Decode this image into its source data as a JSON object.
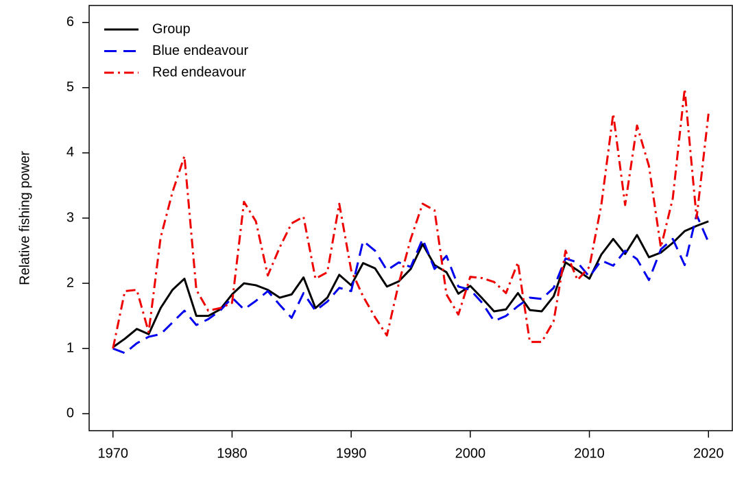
{
  "chart_data": {
    "type": "line",
    "y_label": "Relative fishing power",
    "x": [
      1970,
      1971,
      1972,
      1973,
      1974,
      1975,
      1976,
      1977,
      1978,
      1979,
      1980,
      1981,
      1982,
      1983,
      1984,
      1985,
      1986,
      1987,
      1988,
      1989,
      1990,
      1991,
      1992,
      1993,
      1994,
      1995,
      1996,
      1997,
      1998,
      1999,
      2000,
      2001,
      2002,
      2003,
      2004,
      2005,
      2006,
      2007,
      2008,
      2009,
      2010,
      2011,
      2012,
      2013,
      2014,
      2015,
      2016,
      2017,
      2018,
      2019,
      2020
    ],
    "series": [
      {
        "name": "Group",
        "color": "#000000",
        "dash": "solid",
        "values": [
          1.02,
          1.15,
          1.3,
          1.22,
          1.62,
          1.9,
          2.07,
          1.5,
          1.5,
          1.6,
          1.83,
          2.0,
          1.97,
          1.9,
          1.78,
          1.83,
          2.09,
          1.62,
          1.78,
          2.13,
          1.97,
          2.31,
          2.23,
          1.95,
          2.03,
          2.22,
          2.6,
          2.28,
          2.17,
          1.84,
          1.96,
          1.77,
          1.57,
          1.6,
          1.85,
          1.59,
          1.57,
          1.8,
          2.32,
          2.2,
          2.07,
          2.44,
          2.68,
          2.45,
          2.74,
          2.4,
          2.47,
          2.62,
          2.8,
          2.88,
          2.95
        ]
      },
      {
        "name": "Blue endeavour",
        "color": "#0000ee",
        "dash": "dashed",
        "values": [
          1.0,
          0.93,
          1.08,
          1.18,
          1.22,
          1.4,
          1.58,
          1.36,
          1.45,
          1.58,
          1.78,
          1.6,
          1.73,
          1.88,
          1.67,
          1.47,
          1.85,
          1.58,
          1.72,
          1.93,
          1.88,
          2.65,
          2.5,
          2.2,
          2.32,
          2.25,
          2.68,
          2.22,
          2.42,
          1.95,
          1.9,
          1.7,
          1.42,
          1.5,
          1.65,
          1.78,
          1.76,
          1.93,
          2.38,
          2.32,
          2.1,
          2.35,
          2.27,
          2.5,
          2.37,
          2.05,
          2.52,
          2.68,
          2.28,
          3.05,
          2.63
        ]
      },
      {
        "name": "Red endeavour",
        "color": "#ee0000",
        "dash": "dotdash",
        "values": [
          1.0,
          1.88,
          1.9,
          1.25,
          2.7,
          3.4,
          3.95,
          1.9,
          1.58,
          1.62,
          1.7,
          3.25,
          2.95,
          2.12,
          2.55,
          2.92,
          3.02,
          2.07,
          2.17,
          3.22,
          2.2,
          1.8,
          1.48,
          1.2,
          2.0,
          2.68,
          3.22,
          3.12,
          1.83,
          1.52,
          2.1,
          2.08,
          2.02,
          1.85,
          2.32,
          1.1,
          1.1,
          1.42,
          2.5,
          2.05,
          2.25,
          3.2,
          4.6,
          3.2,
          4.42,
          3.8,
          2.55,
          3.3,
          4.98,
          3.0,
          4.6
        ]
      }
    ],
    "xlim": [
      1968,
      2022
    ],
    "ylim": [
      -0.26,
      6.26
    ],
    "xticks": [
      1970,
      1980,
      1990,
      2000,
      2010,
      2020
    ],
    "yticks": [
      0,
      1,
      2,
      3,
      4,
      5,
      6
    ],
    "legend": "top-left",
    "grid": false
  }
}
